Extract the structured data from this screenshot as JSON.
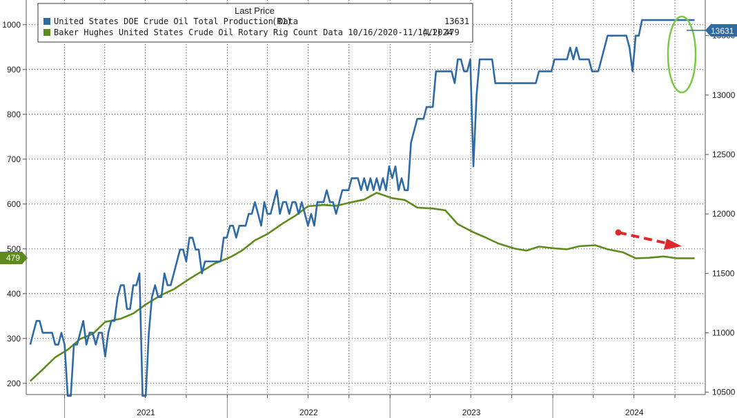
{
  "chart_data": {
    "type": "line",
    "title": "",
    "legend": {
      "title": "Last Price",
      "placement": "top-left",
      "entries": [
        {
          "name": "United States DOE Crude Oil Total Production Data",
          "axis": "(R1)",
          "last": "13631",
          "color": "#2e6aa6"
        },
        {
          "name": "Baker Hughes United States Crude Oil Rotary Rig Count Data 10/16/2020-11/14/2024",
          "axis": "(L1)",
          "last": "479",
          "color": "#5e8c1c"
        }
      ]
    },
    "x_axis": {
      "labels": [
        "2021",
        "2022",
        "2023",
        "2024"
      ],
      "range": [
        "2020-10-16",
        "2024-11-14"
      ]
    },
    "left_axis": {
      "ticks": [
        "200",
        "300",
        "400",
        "500",
        "600",
        "700",
        "800",
        "900",
        "1000"
      ],
      "ylim": [
        175,
        1055
      ]
    },
    "right_axis": {
      "ticks": [
        "10500",
        "11000",
        "11500",
        "12000",
        "12500",
        "13000",
        "13500"
      ],
      "ylim": [
        10480,
        13800
      ]
    },
    "grid": true,
    "last_value_badges": {
      "left": "479",
      "right": "13631"
    },
    "series": [
      {
        "name": "United States DOE Crude Oil Total Production Data",
        "axis": "right",
        "color": "#2e6aa6",
        "points": [
          [
            "2020-10-16",
            10900
          ],
          [
            "2020-10-30",
            11100
          ],
          [
            "2020-11-06",
            11100
          ],
          [
            "2020-11-13",
            11000
          ],
          [
            "2020-12-04",
            11000
          ],
          [
            "2020-12-11",
            10900
          ],
          [
            "2020-12-18",
            10900
          ],
          [
            "2020-12-25",
            11000
          ],
          [
            "2021-01-01",
            10900
          ],
          [
            "2021-01-08",
            10400
          ],
          [
            "2021-01-15",
            10400
          ],
          [
            "2021-01-22",
            10900
          ],
          [
            "2021-01-29",
            10900
          ],
          [
            "2021-02-05",
            11000
          ],
          [
            "2021-02-12",
            11100
          ],
          [
            "2021-02-19",
            10900
          ],
          [
            "2021-02-26",
            11000
          ],
          [
            "2021-03-05",
            11000
          ],
          [
            "2021-03-12",
            10900
          ],
          [
            "2021-03-19",
            11000
          ],
          [
            "2021-03-26",
            11000
          ],
          [
            "2021-04-02",
            10800
          ],
          [
            "2021-04-09",
            11000
          ],
          [
            "2021-04-16",
            11100
          ],
          [
            "2021-04-23",
            11100
          ],
          [
            "2021-04-30",
            11300
          ],
          [
            "2021-05-07",
            11400
          ],
          [
            "2021-05-14",
            11400
          ],
          [
            "2021-05-21",
            11200
          ],
          [
            "2021-05-28",
            11200
          ],
          [
            "2021-06-04",
            11400
          ],
          [
            "2021-06-11",
            11400
          ],
          [
            "2021-06-18",
            11500
          ],
          [
            "2021-06-25",
            10400
          ],
          [
            "2021-07-02",
            10400
          ],
          [
            "2021-07-09",
            11000
          ],
          [
            "2021-07-16",
            11300
          ],
          [
            "2021-07-23",
            11400
          ],
          [
            "2021-07-30",
            11300
          ],
          [
            "2021-08-06",
            11300
          ],
          [
            "2021-08-13",
            11500
          ],
          [
            "2021-08-20",
            11400
          ],
          [
            "2021-08-27",
            11400
          ],
          [
            "2021-09-03",
            11500
          ],
          [
            "2021-09-10",
            11600
          ],
          [
            "2021-09-17",
            11700
          ],
          [
            "2021-09-24",
            11700
          ],
          [
            "2021-10-01",
            11600
          ],
          [
            "2021-10-08",
            11800
          ],
          [
            "2021-10-15",
            11800
          ],
          [
            "2021-10-22",
            11700
          ],
          [
            "2021-10-29",
            11700
          ],
          [
            "2021-11-05",
            11500
          ],
          [
            "2021-11-12",
            11600
          ],
          [
            "2021-11-19",
            11600
          ],
          [
            "2021-12-17",
            11600
          ],
          [
            "2021-12-24",
            11800
          ],
          [
            "2021-12-31",
            11800
          ],
          [
            "2022-01-07",
            11900
          ],
          [
            "2022-01-14",
            11900
          ],
          [
            "2022-01-21",
            11800
          ],
          [
            "2022-01-28",
            11900
          ],
          [
            "2022-02-04",
            11900
          ],
          [
            "2022-02-11",
            11900
          ],
          [
            "2022-02-18",
            12000
          ],
          [
            "2022-02-25",
            12000
          ],
          [
            "2022-03-04",
            12100
          ],
          [
            "2022-03-11",
            12000
          ],
          [
            "2022-03-18",
            11900
          ],
          [
            "2022-03-25",
            12100
          ],
          [
            "2022-04-01",
            12000
          ],
          [
            "2022-04-08",
            12000
          ],
          [
            "2022-04-15",
            12100
          ],
          [
            "2022-04-22",
            12200
          ],
          [
            "2022-04-29",
            12000
          ],
          [
            "2022-05-06",
            12100
          ],
          [
            "2022-05-13",
            12100
          ],
          [
            "2022-05-20",
            12000
          ],
          [
            "2022-05-27",
            12100
          ],
          [
            "2022-06-03",
            12100
          ],
          [
            "2022-06-10",
            12000
          ],
          [
            "2022-06-17",
            12100
          ],
          [
            "2022-06-24",
            12000
          ],
          [
            "2022-07-01",
            11900
          ],
          [
            "2022-07-08",
            12000
          ],
          [
            "2022-07-15",
            11900
          ],
          [
            "2022-07-22",
            12100
          ],
          [
            "2022-07-29",
            12100
          ],
          [
            "2022-08-05",
            12100
          ],
          [
            "2022-08-12",
            12200
          ],
          [
            "2022-08-19",
            12100
          ],
          [
            "2022-08-26",
            12100
          ],
          [
            "2022-09-02",
            12000
          ],
          [
            "2022-09-09",
            12100
          ],
          [
            "2022-09-16",
            12200
          ],
          [
            "2022-09-23",
            12200
          ],
          [
            "2022-09-30",
            12200
          ],
          [
            "2022-10-07",
            12300
          ],
          [
            "2022-10-14",
            12300
          ],
          [
            "2022-10-21",
            12300
          ],
          [
            "2022-10-28",
            12200
          ],
          [
            "2022-11-04",
            12300
          ],
          [
            "2022-11-11",
            12200
          ],
          [
            "2022-11-18",
            12300
          ],
          [
            "2022-11-25",
            12200
          ],
          [
            "2022-12-02",
            12300
          ],
          [
            "2022-12-09",
            12200
          ],
          [
            "2022-12-16",
            12300
          ],
          [
            "2022-12-23",
            12200
          ],
          [
            "2022-12-30",
            12400
          ],
          [
            "2023-01-06",
            12300
          ],
          [
            "2023-01-13",
            12400
          ],
          [
            "2023-01-20",
            12200
          ],
          [
            "2023-01-27",
            12300
          ],
          [
            "2023-02-03",
            12200
          ],
          [
            "2023-02-10",
            12200
          ],
          [
            "2023-02-17",
            12600
          ],
          [
            "2023-02-24",
            12700
          ],
          [
            "2023-03-03",
            12800
          ],
          [
            "2023-03-10",
            12800
          ],
          [
            "2023-03-17",
            12800
          ],
          [
            "2023-03-24",
            12900
          ],
          [
            "2023-03-31",
            12900
          ],
          [
            "2023-04-07",
            12900
          ],
          [
            "2023-04-14",
            13200
          ],
          [
            "2023-04-21",
            13200
          ],
          [
            "2023-05-19",
            13200
          ],
          [
            "2023-05-26",
            13100
          ],
          [
            "2023-06-02",
            13300
          ],
          [
            "2023-06-09",
            13300
          ],
          [
            "2023-06-16",
            13200
          ],
          [
            "2023-06-23",
            13200
          ],
          [
            "2023-06-30",
            13300
          ],
          [
            "2023-07-07",
            12400
          ],
          [
            "2023-07-14",
            13000
          ],
          [
            "2023-07-21",
            13300
          ],
          [
            "2023-08-18",
            13300
          ],
          [
            "2023-08-25",
            13100
          ],
          [
            "2023-09-01",
            13100
          ],
          [
            "2023-11-24",
            13100
          ],
          [
            "2023-12-01",
            13200
          ],
          [
            "2023-12-29",
            13200
          ],
          [
            "2024-01-05",
            13300
          ],
          [
            "2024-02-02",
            13300
          ],
          [
            "2024-02-09",
            13400
          ],
          [
            "2024-02-16",
            13300
          ],
          [
            "2024-02-23",
            13400
          ],
          [
            "2024-03-01",
            13300
          ],
          [
            "2024-03-22",
            13300
          ],
          [
            "2024-03-29",
            13200
          ],
          [
            "2024-04-12",
            13200
          ],
          [
            "2024-04-19",
            13300
          ],
          [
            "2024-04-26",
            13400
          ],
          [
            "2024-05-03",
            13500
          ],
          [
            "2024-06-14",
            13500
          ],
          [
            "2024-06-21",
            13400
          ],
          [
            "2024-06-28",
            13200
          ],
          [
            "2024-07-05",
            13500
          ],
          [
            "2024-07-12",
            13500
          ],
          [
            "2024-07-19",
            13631
          ],
          [
            "2024-11-14",
            13631
          ]
        ]
      },
      {
        "name": "Baker Hughes United States Crude Oil Rotary Rig Count Data 10/16/2020-11/14/2024",
        "axis": "left",
        "color": "#5e8c1c",
        "points": [
          [
            "2020-10-16",
            205
          ],
          [
            "2020-11-13",
            231
          ],
          [
            "2020-12-11",
            258
          ],
          [
            "2021-01-08",
            275
          ],
          [
            "2021-02-05",
            299
          ],
          [
            "2021-03-05",
            310
          ],
          [
            "2021-04-02",
            337
          ],
          [
            "2021-05-07",
            344
          ],
          [
            "2021-06-04",
            356
          ],
          [
            "2021-07-02",
            376
          ],
          [
            "2021-08-06",
            397
          ],
          [
            "2021-09-03",
            410
          ],
          [
            "2021-10-08",
            433
          ],
          [
            "2021-11-05",
            450
          ],
          [
            "2021-12-03",
            467
          ],
          [
            "2022-01-07",
            481
          ],
          [
            "2022-02-04",
            497
          ],
          [
            "2022-03-04",
            519
          ],
          [
            "2022-04-01",
            533
          ],
          [
            "2022-05-06",
            557
          ],
          [
            "2022-06-03",
            574
          ],
          [
            "2022-07-01",
            595
          ],
          [
            "2022-08-05",
            598
          ],
          [
            "2022-09-02",
            596
          ],
          [
            "2022-10-07",
            604
          ],
          [
            "2022-11-04",
            610
          ],
          [
            "2022-12-02",
            625
          ],
          [
            "2023-01-06",
            613
          ],
          [
            "2023-02-03",
            609
          ],
          [
            "2023-03-03",
            592
          ],
          [
            "2023-04-07",
            590
          ],
          [
            "2023-05-05",
            586
          ],
          [
            "2023-06-02",
            555
          ],
          [
            "2023-07-07",
            537
          ],
          [
            "2023-08-04",
            525
          ],
          [
            "2023-09-01",
            512
          ],
          [
            "2023-10-06",
            501
          ],
          [
            "2023-11-03",
            496
          ],
          [
            "2023-12-01",
            505
          ],
          [
            "2024-01-05",
            501
          ],
          [
            "2024-02-02",
            499
          ],
          [
            "2024-03-01",
            506
          ],
          [
            "2024-04-05",
            508
          ],
          [
            "2024-05-03",
            499
          ],
          [
            "2024-06-07",
            492
          ],
          [
            "2024-07-05",
            479
          ],
          [
            "2024-08-02",
            480
          ],
          [
            "2024-09-06",
            483
          ],
          [
            "2024-10-04",
            479
          ],
          [
            "2024-11-14",
            479
          ]
        ]
      }
    ]
  }
}
